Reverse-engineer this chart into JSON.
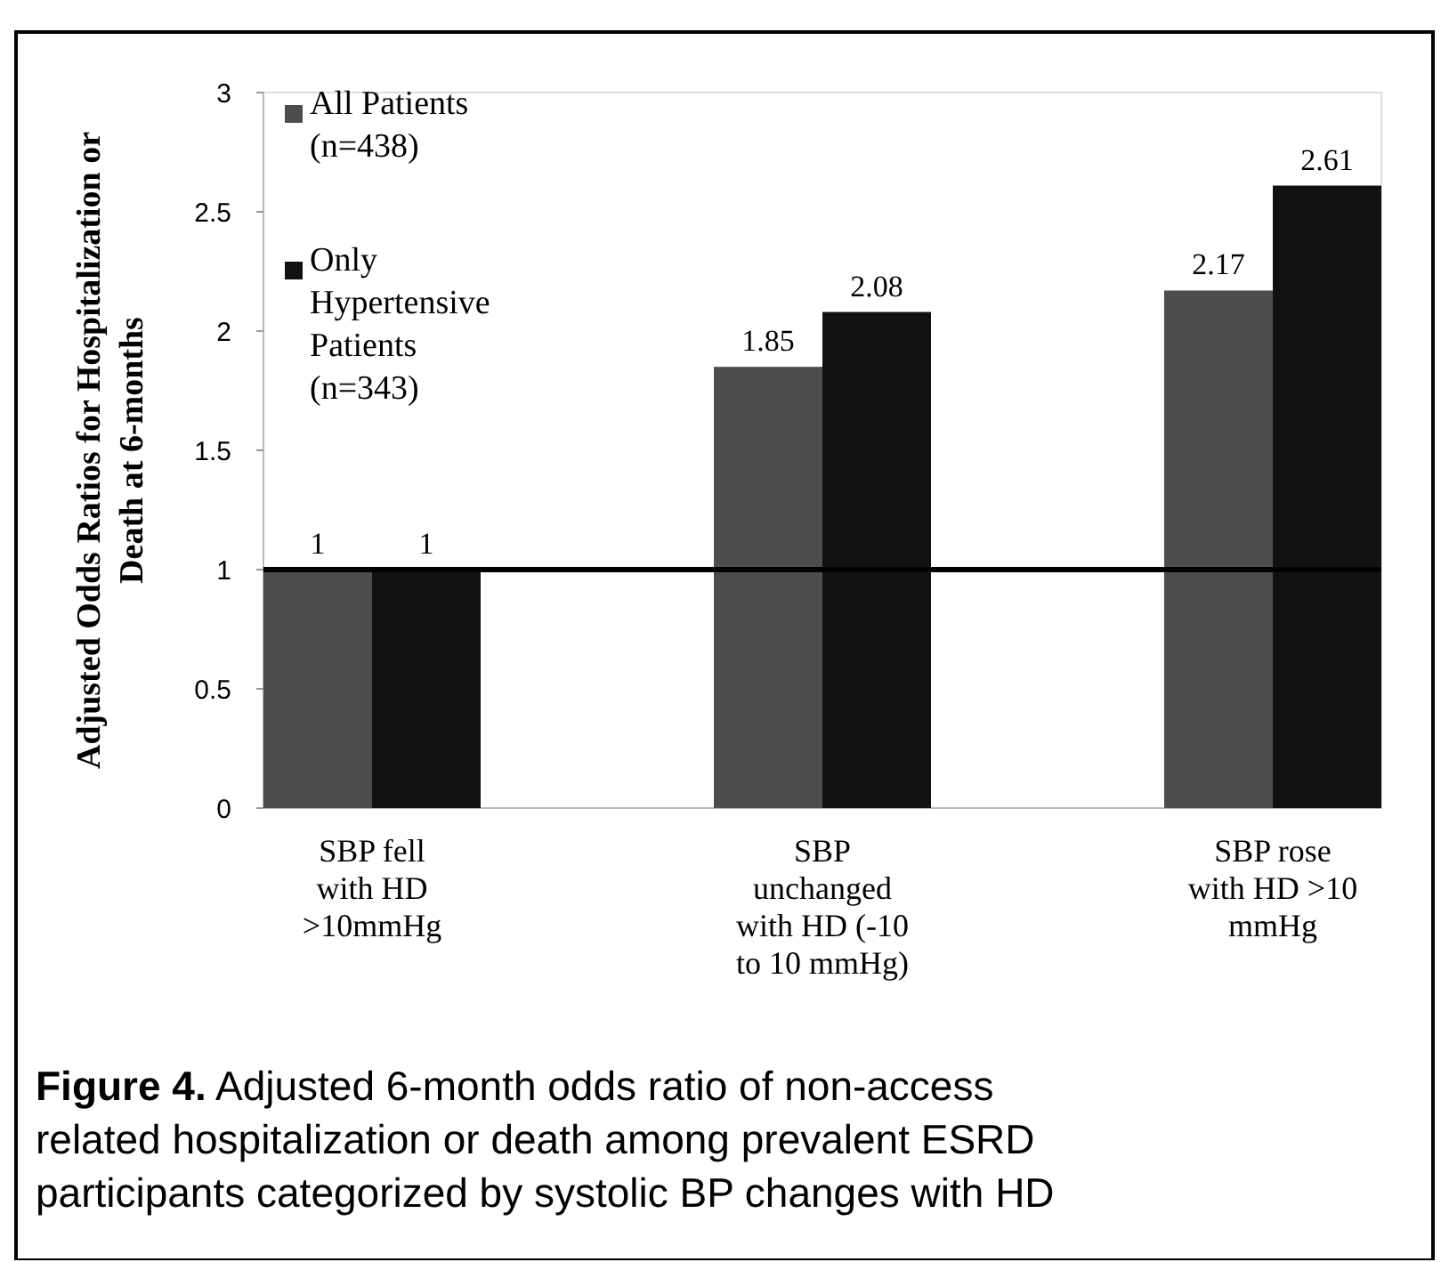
{
  "chart_data": {
    "type": "bar",
    "ylabel": "Adjusted Odds Ratios for Hospitalization or Death at 6-months",
    "categories": [
      "SBP fell with HD >10mmHg",
      "SBP unchanged with HD (-10 to 10 mmHg)",
      "SBP rose with HD >10 mmHg"
    ],
    "series": [
      {
        "name": "All Patients (n=438)",
        "color": "#4d4d4d",
        "values": [
          1,
          1.85,
          2.17
        ]
      },
      {
        "name": "Only Hypertensive Patients (n=343)",
        "color": "#111111",
        "values": [
          1,
          2.08,
          2.61
        ]
      }
    ],
    "ylim": [
      0,
      3
    ],
    "yticks": [
      0,
      0.5,
      1,
      1.5,
      2,
      2.5,
      3
    ],
    "grid": false,
    "legend": "top left",
    "data_labels": true,
    "ref_lines": [
      {
        "axis": "y",
        "value": 1,
        "color": "#000000"
      }
    ],
    "annotations": [
      "Figure 4.  Adjusted 6-month odds ratio of non-access related hospitalization or death among prevalent ESRD participants categorized by systolic BP changes with HD"
    ]
  }
}
